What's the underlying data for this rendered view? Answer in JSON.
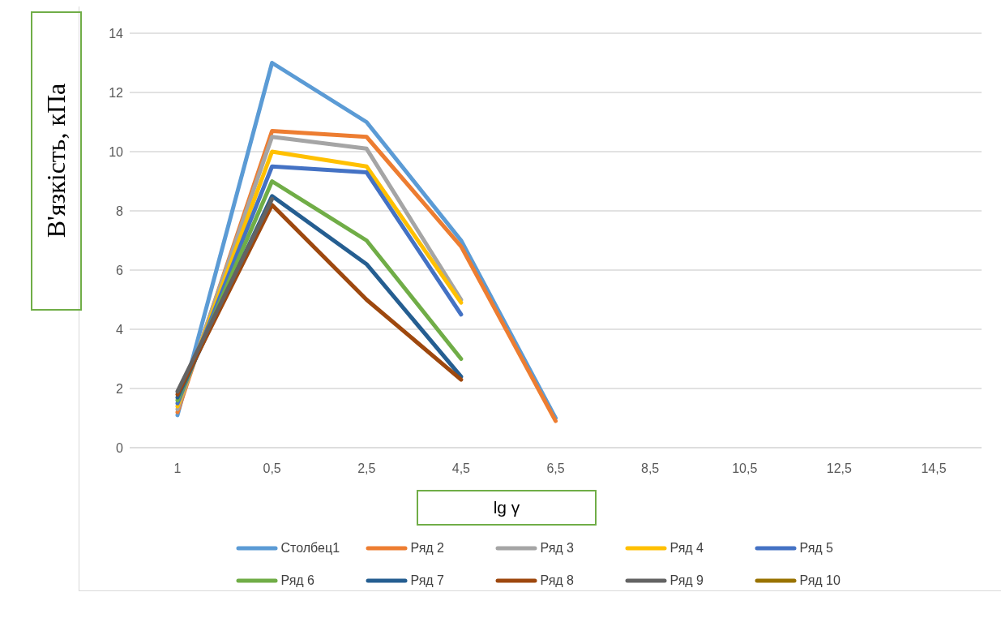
{
  "chart_data": {
    "type": "line",
    "xlabel": "lg γ",
    "ylabel": "В'язкість, кПа",
    "categories": [
      "1",
      "0,5",
      "2,5",
      "4,5",
      "6,5",
      "8,5",
      "10,5",
      "12,5",
      "14,5"
    ],
    "series": [
      {
        "name": "Столбец1",
        "color": "#5b9bd5",
        "values": [
          1.1,
          13,
          11,
          7,
          1.0,
          null,
          null,
          null,
          null
        ]
      },
      {
        "name": "Ряд 2",
        "color": "#ed7d31",
        "values": [
          1.2,
          10.7,
          10.5,
          6.8,
          0.9,
          null,
          null,
          null,
          null
        ]
      },
      {
        "name": "Ряд 3",
        "color": "#a5a5a5",
        "values": [
          1.3,
          10.5,
          10.1,
          5.0,
          null,
          null,
          null,
          null,
          null
        ]
      },
      {
        "name": "Ряд 4",
        "color": "#ffc000",
        "values": [
          1.4,
          10,
          9.5,
          4.9,
          null,
          null,
          null,
          null,
          null
        ]
      },
      {
        "name": "Ряд 5",
        "color": "#4472c4",
        "values": [
          1.5,
          9.5,
          9.3,
          4.5,
          null,
          null,
          null,
          null,
          null
        ]
      },
      {
        "name": "Ряд 6",
        "color": "#70ad47",
        "values": [
          1.6,
          9,
          7,
          3,
          null,
          null,
          null,
          null,
          null
        ]
      },
      {
        "name": "Ряд 7",
        "color": "#255e91",
        "values": [
          1.7,
          8.5,
          6.2,
          2.4,
          null,
          null,
          null,
          null,
          null
        ]
      },
      {
        "name": "Ряд 8",
        "color": "#9e480e",
        "values": [
          1.8,
          8.2,
          5,
          2.3,
          null,
          null,
          null,
          null,
          null
        ]
      },
      {
        "name": "Ряд 9",
        "color": "#636363",
        "values": [
          1.9,
          8.4,
          null,
          null,
          null,
          null,
          null,
          null,
          null
        ]
      },
      {
        "name": "Ряд 10",
        "color": "#997300",
        "values": [
          null,
          null,
          null,
          null,
          null,
          null,
          null,
          null,
          null
        ]
      }
    ],
    "ylim": [
      0,
      14
    ],
    "yticks": [
      0,
      2,
      4,
      6,
      8,
      10,
      12,
      14
    ],
    "grid": "y",
    "legend": "bottom",
    "marker": "none",
    "line_style": "solid"
  }
}
